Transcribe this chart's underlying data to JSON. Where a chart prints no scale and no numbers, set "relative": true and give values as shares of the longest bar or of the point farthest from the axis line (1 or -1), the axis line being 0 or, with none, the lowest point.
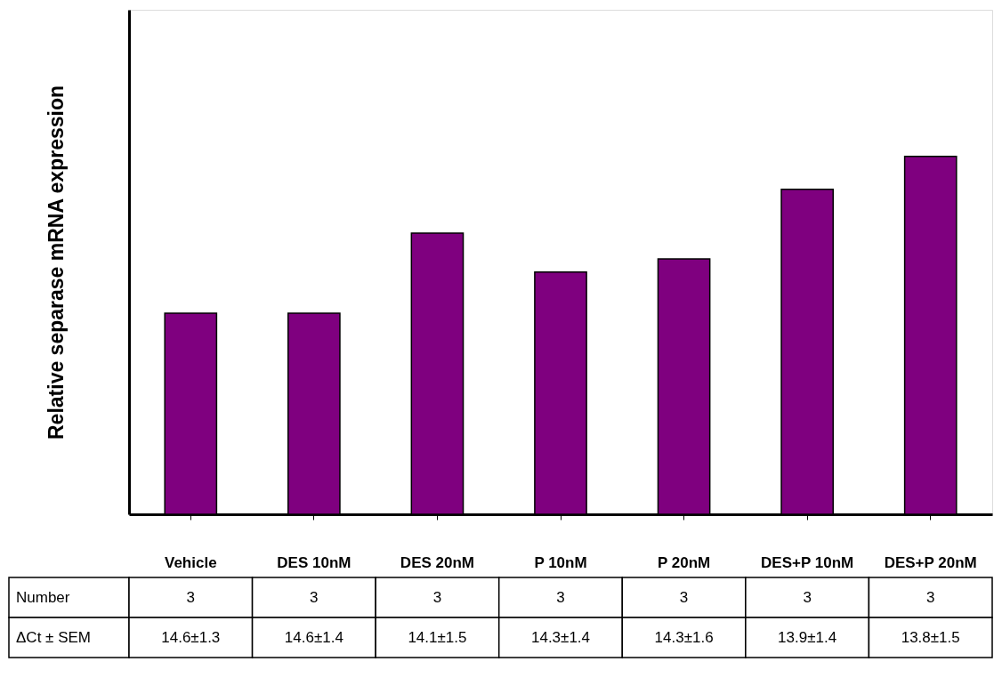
{
  "chart_data": {
    "type": "bar",
    "relative": true,
    "ylabel": "Relative separase mRNA expression",
    "categories": [
      "Vehicle",
      "DES 10nM",
      "DES 20nM",
      "P 10nM",
      "P 20nM",
      "DES+P 10nM",
      "DES+P 20nM"
    ],
    "values": [
      0.562,
      0.562,
      0.786,
      0.677,
      0.714,
      0.908,
      1.0
    ],
    "color": "#7f007f",
    "grid": false,
    "annotations": [
      "Number",
      "3",
      "3",
      "3",
      "3",
      "3",
      "3",
      "3",
      "ΔCt ± SEM",
      "14.6±1.3",
      "14.6±1.4",
      "14.1±1.5",
      "14.3±1.4",
      "14.3±1.6",
      "13.9±1.4",
      "13.8±1.5"
    ]
  }
}
